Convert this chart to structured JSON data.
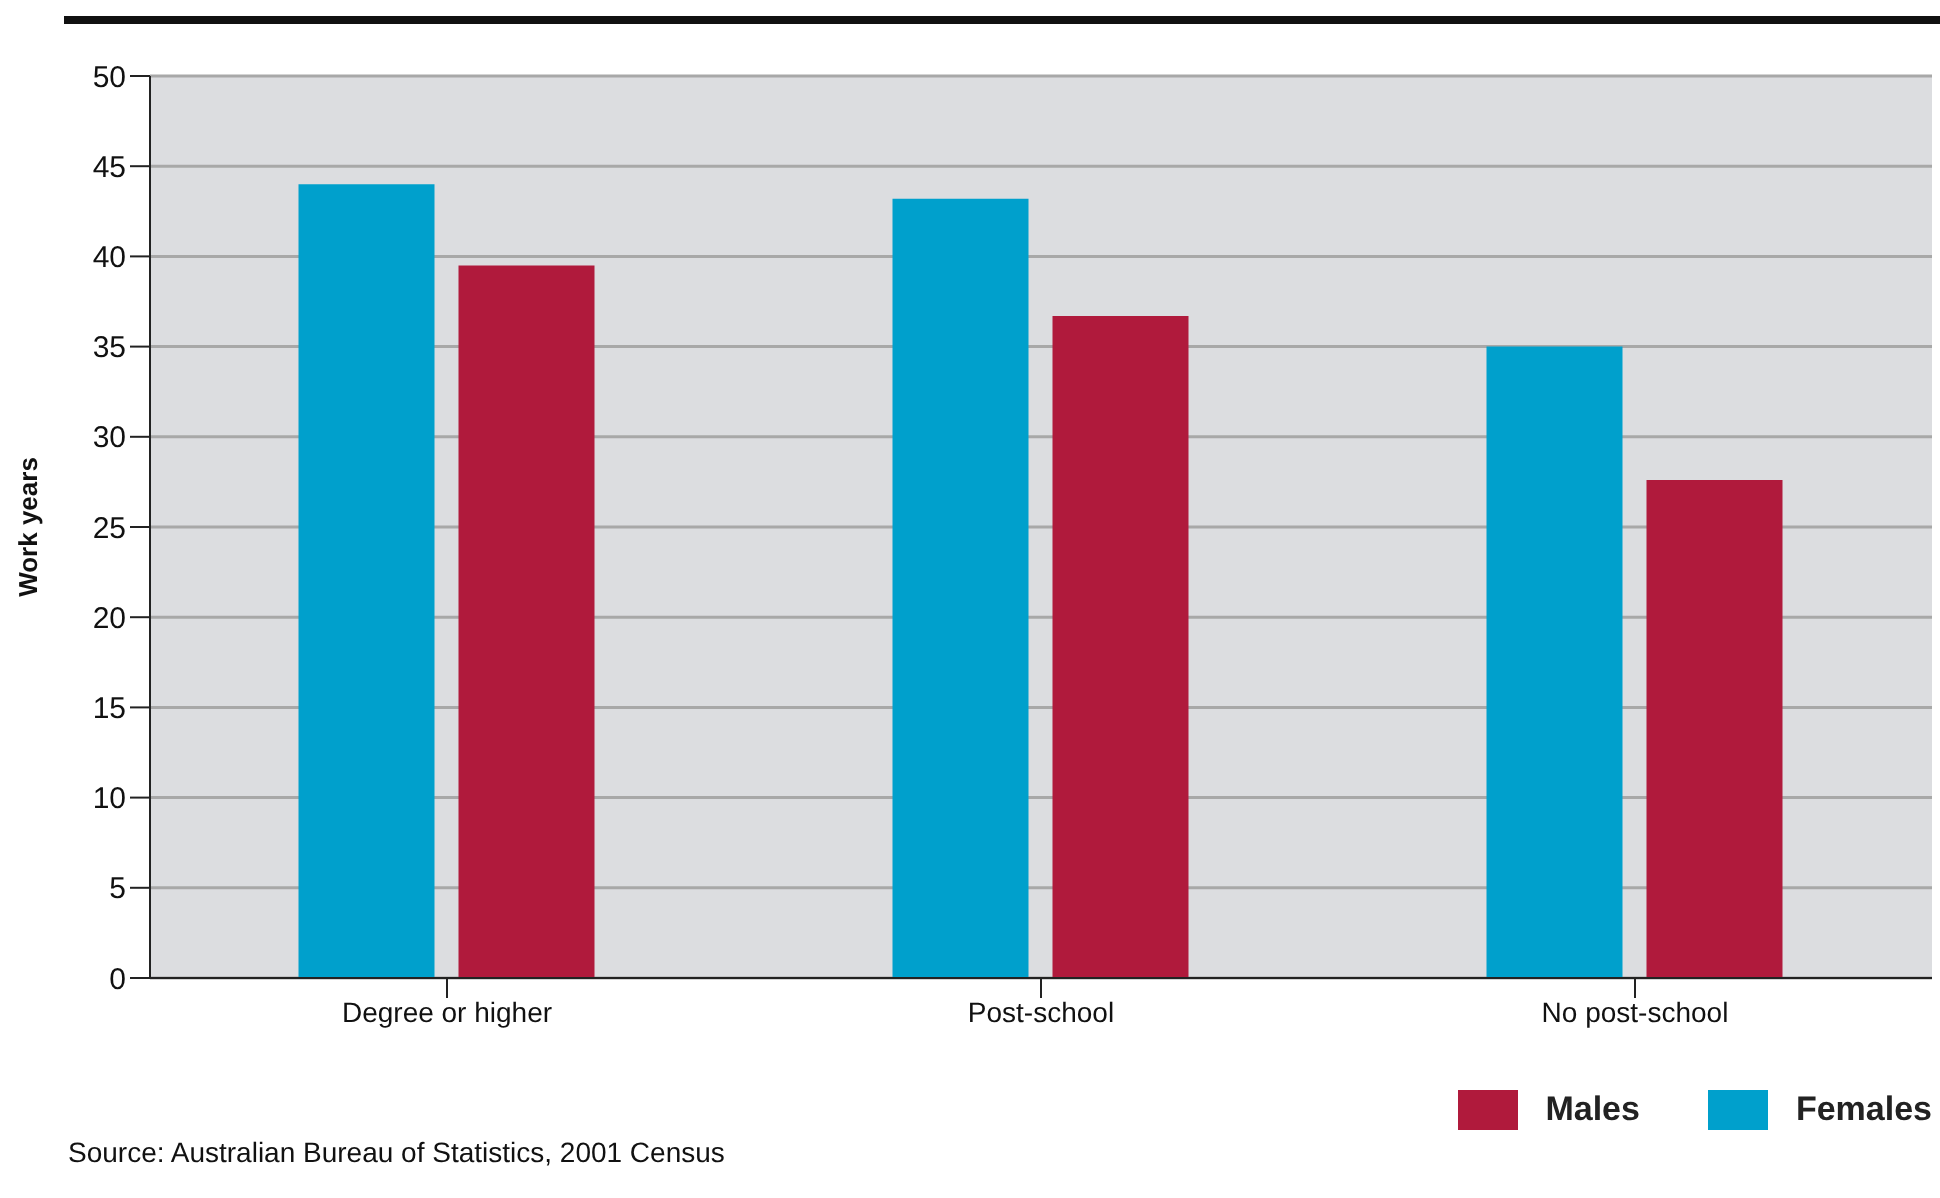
{
  "chart_data": {
    "type": "bar",
    "ylabel": "Work years",
    "categories": [
      "Degree or higher",
      "Post-school",
      "No post-school"
    ],
    "series": [
      {
        "name": "Females",
        "color": "#00a0cc",
        "values": [
          44,
          43.2,
          35
        ]
      },
      {
        "name": "Males",
        "color": "#b01a3c",
        "values": [
          39.5,
          36.7,
          27.6
        ]
      }
    ],
    "ylim": [
      0,
      50
    ],
    "yticks": [
      0,
      5,
      10,
      15,
      20,
      25,
      30,
      35,
      40,
      45,
      50
    ],
    "grid": "y",
    "legend": "bottom right",
    "annotations": [
      "Source: Australian Bureau of Statistics, 2001 Census"
    ]
  }
}
